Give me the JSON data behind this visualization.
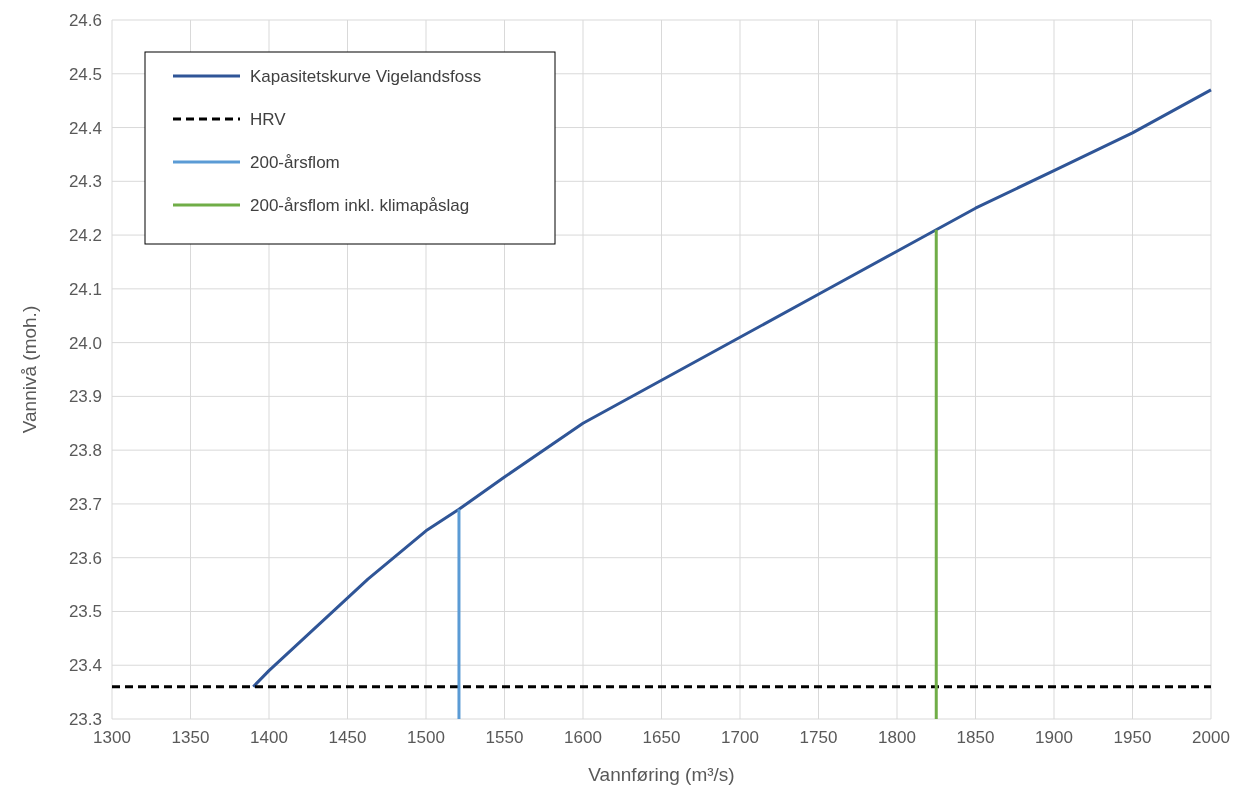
{
  "chart_data": {
    "type": "line",
    "xlabel": "Vannføring (m³/s)",
    "ylabel": "Vannivå (moh.)",
    "xlim": [
      1300,
      2000
    ],
    "xticks": [
      1300,
      1350,
      1400,
      1450,
      1500,
      1550,
      1600,
      1650,
      1700,
      1750,
      1800,
      1850,
      1900,
      1950,
      2000
    ],
    "ylim": [
      23.3,
      24.6
    ],
    "yticks": [
      23.3,
      23.4,
      23.5,
      23.6,
      23.7,
      23.8,
      23.9,
      {
        "value": 24,
        "label": "24.0"
      },
      24.1,
      24.2,
      24.3,
      24.4,
      24.5,
      24.6
    ],
    "grid": true,
    "legend": "top left",
    "marker": "none",
    "series": [
      {
        "name": "Kapasitetskurve Vigelandsfoss",
        "color": "#2f5597",
        "x": [
          1390,
          1400,
          1463,
          1500,
          1521,
          1550,
          1600,
          1650,
          1700,
          1750,
          1800,
          1825,
          1850,
          1900,
          1950,
          2000
        ],
        "values": [
          23.36,
          23.39,
          23.56,
          23.65,
          23.69,
          23.75,
          23.85,
          23.93,
          24.01,
          24.09,
          24.17,
          24.21,
          24.25,
          24.32,
          24.39,
          24.47
        ]
      },
      {
        "name": "HRV",
        "color": "#000000",
        "line_style": "dashed",
        "x": [
          1300,
          2000
        ],
        "values": [
          23.36,
          23.36
        ]
      },
      {
        "name": "200-årsflom",
        "color": "#5b9bd5",
        "x": [
          1521,
          1521
        ],
        "values": [
          23.3,
          23.69
        ]
      },
      {
        "name": "200-årsflom inkl. klimapåslag",
        "color": "#70ad47",
        "x": [
          1825,
          1825
        ],
        "values": [
          23.3,
          24.21
        ]
      }
    ]
  }
}
